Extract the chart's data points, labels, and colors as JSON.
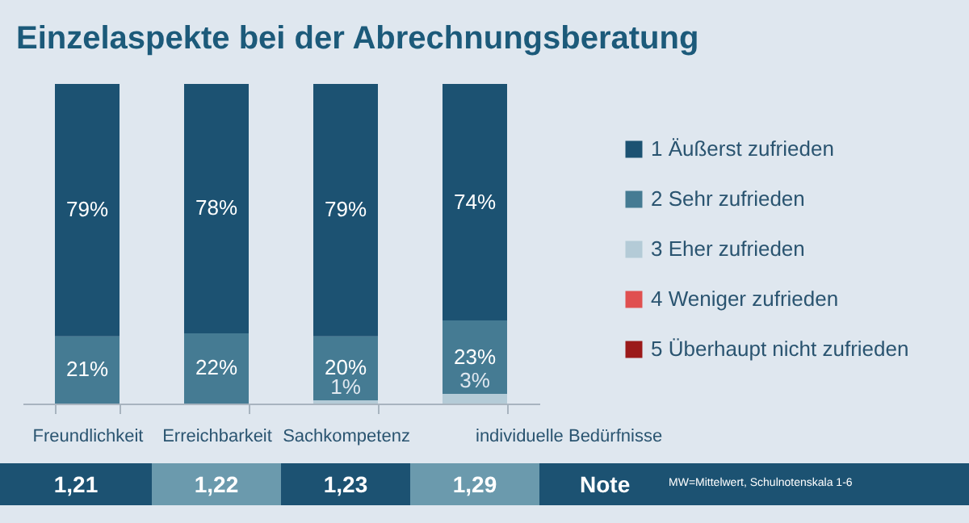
{
  "chart_data": {
    "type": "bar",
    "title": "Einzelaspekte bei der Abrechnungsberatung",
    "stacked": true,
    "legend": "right",
    "categories": [
      "Freundlichkeit",
      "Erreichbarkeit",
      "Sachkompetenz",
      "individuelle Bedürfnisse"
    ],
    "series": [
      {
        "name": "5 Überhaupt nicht zufrieden",
        "color": "#9b1a1a",
        "values": [
          0,
          0,
          0,
          0
        ],
        "value_labels": [
          null,
          null,
          null,
          null
        ]
      },
      {
        "name": "4 Weniger zufrieden",
        "color": "#e05050",
        "values": [
          0,
          0,
          0,
          0
        ],
        "value_labels": [
          null,
          null,
          null,
          null
        ]
      },
      {
        "name": "3 Eher zufrieden",
        "color": "#b4cbd7",
        "values": [
          0,
          0,
          1,
          3
        ],
        "value_labels": [
          null,
          null,
          "1%",
          "3%"
        ]
      },
      {
        "name": "2 Sehr zufrieden",
        "color": "#457b93",
        "values": [
          21,
          22,
          20,
          23
        ],
        "value_labels": [
          "21%",
          "22%",
          "20%",
          "23%"
        ]
      },
      {
        "name": "1 Äußerst zufrieden",
        "color": "#1c5272",
        "values": [
          79,
          78,
          79,
          74
        ],
        "value_labels": [
          "79%",
          "78%",
          "79%",
          "74%"
        ]
      }
    ],
    "annotations": [
      "1,21",
      "1,22",
      "1,23",
      "1,29",
      "Note",
      "MW=Mittelwert, Schulnotenskala 1-6"
    ]
  }
}
